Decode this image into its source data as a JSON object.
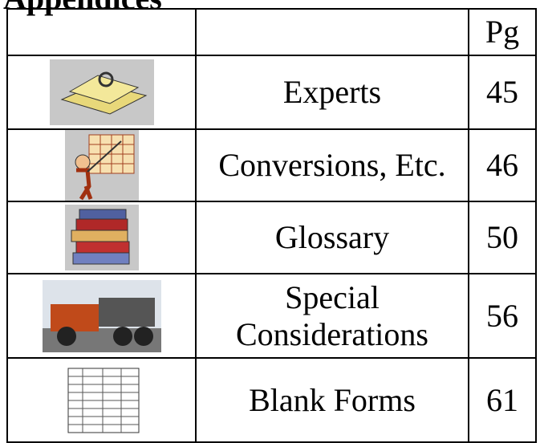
{
  "heading": "Appendices",
  "table": {
    "header": [
      "Pg"
    ],
    "rows": [
      [
        "Experts",
        "45"
      ],
      [
        "Conversions, Etc.",
        "46"
      ],
      [
        "Glossary",
        "50"
      ],
      [
        "Special Considerations",
        "56"
      ],
      [
        "Blank Forms",
        "61"
      ]
    ]
  }
}
